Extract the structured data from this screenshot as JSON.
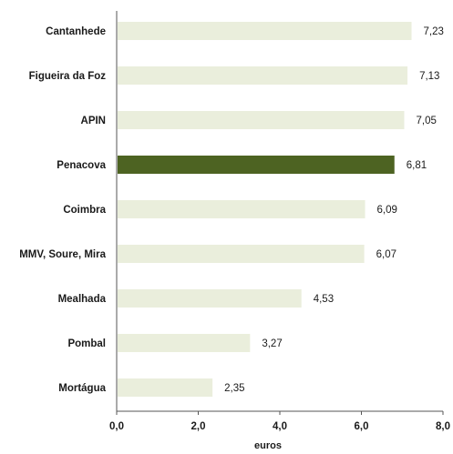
{
  "chart_data": {
    "type": "bar",
    "orientation": "horizontal",
    "categories": [
      "Cantanhede",
      "Figueira da Foz",
      "APIN",
      "Penacova",
      "Coimbra",
      "MMV, Soure, Mira",
      "Mealhada",
      "Pombal",
      "Mortágua"
    ],
    "values": [
      7.23,
      7.13,
      7.05,
      6.81,
      6.09,
      6.07,
      4.53,
      3.27,
      2.35
    ],
    "value_labels": [
      "7,23",
      "7,13",
      "7,05",
      "6,81",
      "6,09",
      "6,07",
      "4,53",
      "3,27",
      "2,35"
    ],
    "highlight_index": 3,
    "xlabel": "euros",
    "xlim": [
      0,
      8
    ],
    "xticks": [
      0,
      2,
      4,
      6,
      8
    ],
    "xtick_labels": [
      "0,0",
      "2,0",
      "4,0",
      "6,0",
      "8,0"
    ],
    "grid": false,
    "colors": {
      "bar": "#eaeedc",
      "highlight": "#4d6322",
      "axis": "#555555"
    }
  }
}
